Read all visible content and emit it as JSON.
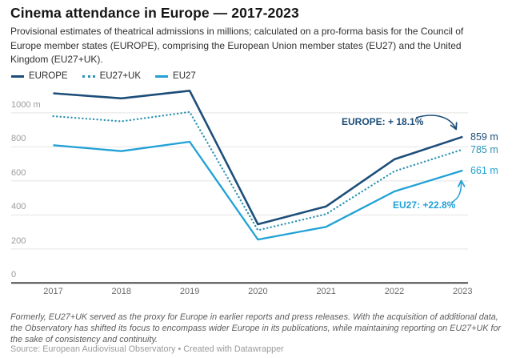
{
  "header": {
    "title": "Cinema attendance in Europe — 2017-2023",
    "description": "Provisional estimates of theatrical admissions in millions; calculated on a pro-forma basis for the Council of Europe member states (EUROPE), comprising the European Union member states (EU27) and the United Kingdom (EU27+UK)."
  },
  "legend": {
    "items": [
      {
        "label": "EUROPE",
        "style": "solid",
        "color": "#1d4e79"
      },
      {
        "label": "EU27+UK",
        "style": "dotted",
        "color": "#2d93b2"
      },
      {
        "label": "EU27",
        "style": "solid",
        "color": "#21a1d6"
      }
    ]
  },
  "chart_data": {
    "type": "line",
    "title": "Cinema attendance in Europe — 2017-2023",
    "unit": "million admissions",
    "x": [
      2017,
      2018,
      2019,
      2020,
      2021,
      2022,
      2023
    ],
    "series": [
      {
        "name": "EUROPE",
        "color": "#1d4e79",
        "line_style": "solid",
        "values": [
          1115,
          1085,
          1130,
          345,
          450,
          727,
          859
        ],
        "end_label": "859 m"
      },
      {
        "name": "EU27+UK",
        "color": "#2d93b2",
        "line_style": "dotted",
        "values": [
          980,
          950,
          1005,
          310,
          405,
          657,
          785
        ],
        "end_label": "785 m"
      },
      {
        "name": "EU27",
        "color": "#21a1d6",
        "line_style": "solid",
        "values": [
          810,
          775,
          830,
          255,
          330,
          538,
          661
        ],
        "end_label": "661 m"
      }
    ],
    "y_ticks": [
      {
        "value": 0,
        "label": "0"
      },
      {
        "value": 200,
        "label": "200"
      },
      {
        "value": 400,
        "label": "400"
      },
      {
        "value": 600,
        "label": "600"
      },
      {
        "value": 800,
        "label": "800"
      },
      {
        "value": 1000,
        "label": "1000 m"
      }
    ],
    "ylim": [
      0,
      1150
    ],
    "grid": "horizontal",
    "legend_position": "top",
    "annotations": [
      {
        "text": "EUROPE: + 18.1%",
        "series": "EUROPE",
        "color": "#1d4e79"
      },
      {
        "text": "EU27: +22.8%",
        "series": "EU27",
        "color": "#21a1d6"
      }
    ]
  },
  "footer": {
    "note": "Formerly, EU27+UK served as the proxy for Europe in earlier reports and press releases. With the acquisition of additional data, the Observatory has shifted its focus to encompass wider Europe in its publications, while maintaining reporting on EU27+UK for the sake of consistency and continuity.",
    "source": "Source: European Audiovisual Observatory",
    "separator": "•",
    "attribution": "Created with Datawrapper"
  }
}
